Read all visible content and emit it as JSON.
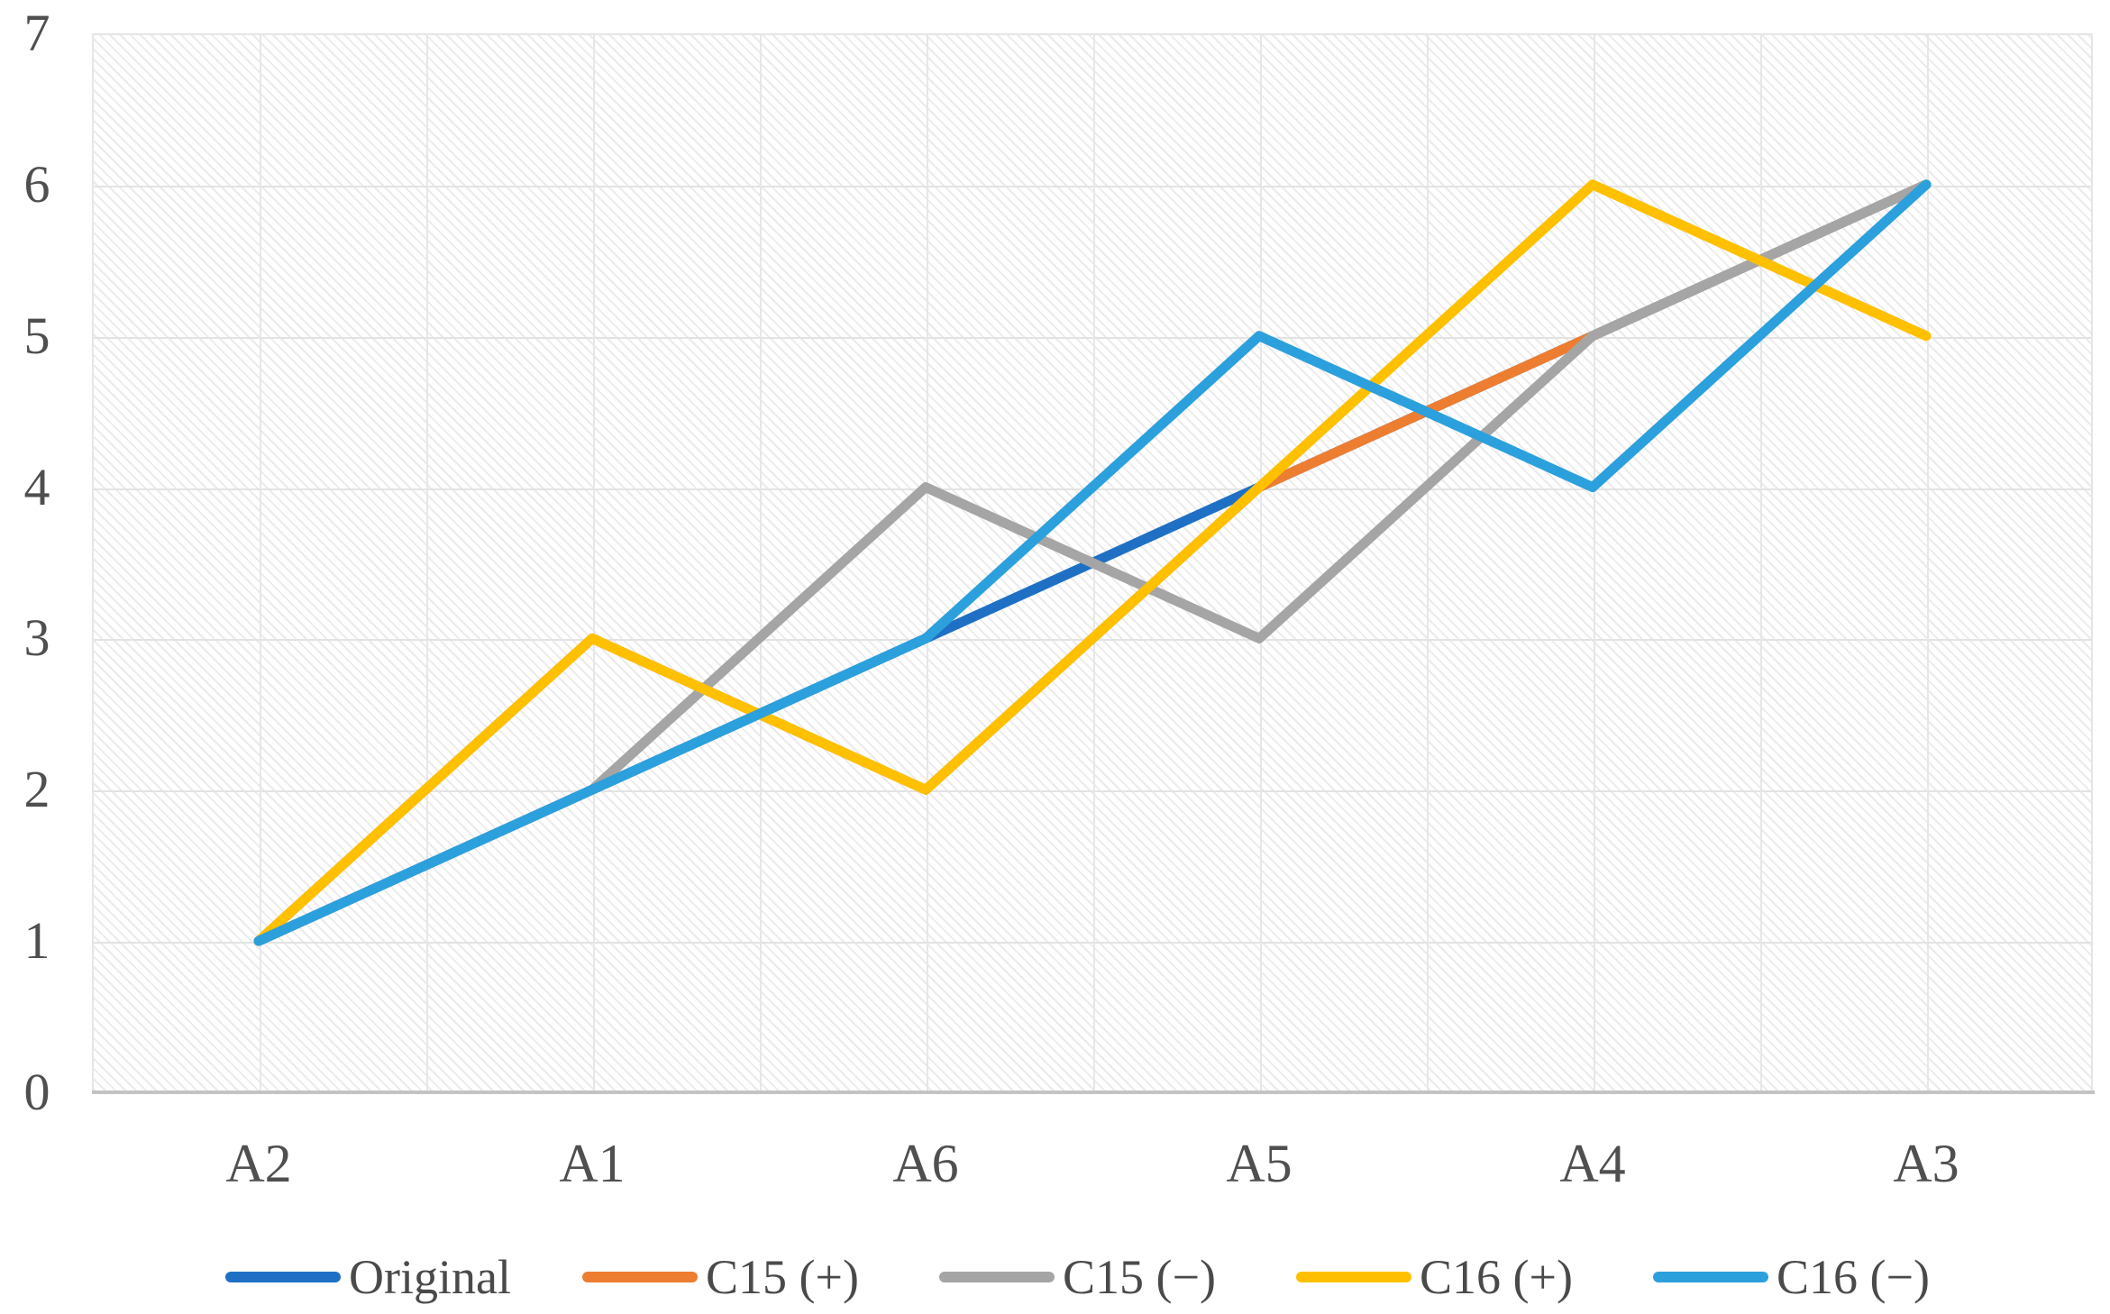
{
  "chart_data": {
    "type": "line",
    "title": "",
    "xlabel": "",
    "ylabel": "",
    "categories": [
      "A2",
      "A1",
      "A6",
      "A5",
      "A4",
      "A3"
    ],
    "series": [
      {
        "name": "Original",
        "color": "#1f70c4",
        "values": [
          1,
          2,
          3,
          4,
          5,
          6
        ]
      },
      {
        "name": "C15 (+)",
        "color": "#ed7d31",
        "values": [
          1,
          3,
          2,
          4,
          5,
          6
        ]
      },
      {
        "name": "C15 (−)",
        "color": "#a5a5a5",
        "values": [
          1,
          2,
          4,
          3,
          5,
          6
        ]
      },
      {
        "name": "C16 (+)",
        "color": "#ffc000",
        "values": [
          1,
          3,
          2,
          4,
          6,
          5
        ]
      },
      {
        "name": "C16 (−)",
        "color": "#2ca0dc",
        "values": [
          1,
          2,
          3,
          5,
          4,
          6
        ]
      }
    ],
    "ylim": [
      0,
      7
    ],
    "yticks": [
      0,
      1,
      2,
      3,
      4,
      5,
      6,
      7
    ],
    "grid": {
      "horizontal": "major on",
      "vertical": "minor on (half-category)"
    },
    "legend_position": "bottom",
    "style": {
      "tick_text_color": "#4f4f4f",
      "legend_text_color": "#4a4a4a",
      "gridline_color": "#e3e3e3",
      "axis_line_color": "#c3c3c3",
      "plot_background": "white with light diagonal hatch"
    }
  }
}
